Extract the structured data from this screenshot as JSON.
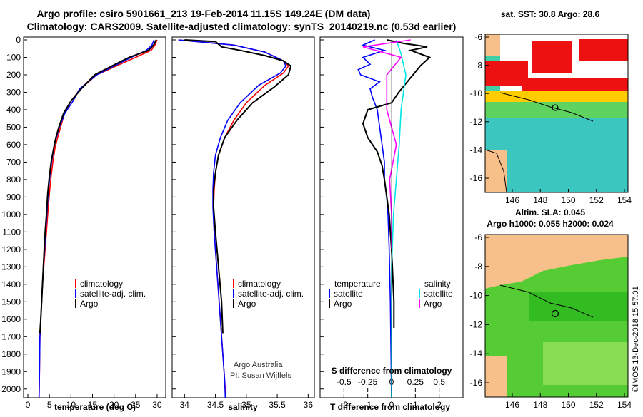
{
  "title": {
    "line1": "Argo profile: csiro 5901661_213 19-Feb-2014 11.15S 149.24E (DM data)",
    "line2": "Climatology: CARS2009. Satellite-adjusted climatology: synTS_20140219.nc (0.53d earlier)"
  },
  "colors": {
    "climatology": "#ff0000",
    "satellite": "#0000ff",
    "argo": "#000000",
    "salinity_sat": "#00e5e5",
    "salinity_argo": "#ff00ff",
    "land": "#f7c08a",
    "ocean_green": "#33cc33"
  },
  "depth_axis": {
    "ticks": [
      "0",
      "100",
      "200",
      "300",
      "400",
      "500",
      "600",
      "700",
      "800",
      "900",
      "1000",
      "1100",
      "1200",
      "1300",
      "1400",
      "1500",
      "1600",
      "1700",
      "1800",
      "1900",
      "2000"
    ],
    "range": [
      0,
      2050
    ]
  },
  "chart_data": [
    {
      "type": "line",
      "id": "temperature",
      "xlabel": "temperature (deg C)",
      "xticks": [
        "0",
        "5",
        "10",
        "15",
        "20",
        "25",
        "30"
      ],
      "xlim": [
        -1,
        32
      ],
      "legend": [
        "climatology",
        "satellite-adj. clim.",
        "Argo"
      ],
      "series": [
        {
          "name": "climatology",
          "color_key": "climatology",
          "x": [
            30.0,
            29.5,
            28.6,
            25.0,
            20.5,
            16.0,
            12.2,
            10.0,
            8.5,
            7.6,
            6.9,
            6.3,
            5.8,
            5.4,
            5.0,
            4.6,
            4.3,
            4.0,
            3.7,
            3.4,
            3.2,
            3.0,
            2.8,
            2.7,
            2.6
          ],
          "y": [
            0,
            30,
            60,
            100,
            150,
            200,
            280,
            350,
            420,
            500,
            560,
            620,
            700,
            780,
            880,
            1000,
            1100,
            1200,
            1300,
            1400,
            1500,
            1600,
            1700,
            1900,
            2050
          ]
        },
        {
          "name": "satellite-adj. clim.",
          "color_key": "satellite",
          "x": [
            29.3,
            28.8,
            27.5,
            24.0,
            20.0,
            16.0,
            12.0,
            10.5,
            8.6,
            7.3,
            6.6,
            6.0,
            5.5,
            5.1,
            4.7,
            4.4,
            4.1,
            3.9,
            3.6,
            3.4,
            3.2,
            3.0,
            2.8,
            2.7,
            2.6
          ],
          "y": [
            0,
            30,
            60,
            100,
            150,
            200,
            280,
            350,
            420,
            500,
            560,
            620,
            700,
            780,
            880,
            1000,
            1100,
            1200,
            1300,
            1400,
            1500,
            1600,
            1700,
            1900,
            2050
          ]
        },
        {
          "name": "Argo",
          "color_key": "argo",
          "x": [
            29.8,
            29.2,
            28.0,
            23.5,
            19.5,
            15.5,
            12.4,
            10.0,
            8.3,
            7.2,
            6.5,
            6.0,
            5.4,
            5.0,
            4.6,
            4.3,
            4.0,
            3.8,
            3.6,
            3.4,
            3.2,
            3.0,
            2.8
          ],
          "y": [
            0,
            30,
            60,
            100,
            150,
            200,
            280,
            350,
            420,
            500,
            560,
            620,
            700,
            780,
            880,
            1000,
            1100,
            1200,
            1300,
            1400,
            1500,
            1600,
            1680
          ]
        }
      ]
    },
    {
      "type": "line",
      "id": "salinity",
      "xlabel": "salinity",
      "xticks": [
        "34",
        "34.5",
        "35",
        "35.5",
        "36"
      ],
      "xlim": [
        33.8,
        36.1
      ],
      "legend": [
        "climatology",
        "satellite-adj. clim.",
        "Argo"
      ],
      "annotation": [
        "Argo Australia",
        "PI: Susan Wijffels"
      ],
      "series": [
        {
          "name": "climatology",
          "color_key": "climatology",
          "x": [
            33.9,
            34.2,
            34.8,
            35.3,
            35.6,
            35.68,
            35.6,
            35.3,
            35.0,
            34.8,
            34.65,
            34.55,
            34.5,
            34.48,
            34.47,
            34.48,
            34.52,
            34.56,
            34.6,
            34.63,
            34.65,
            34.67
          ],
          "y": [
            0,
            10,
            30,
            70,
            120,
            150,
            190,
            260,
            360,
            460,
            560,
            660,
            760,
            860,
            960,
            1100,
            1300,
            1500,
            1700,
            1850,
            1950,
            2050
          ]
        },
        {
          "name": "satellite-adj. clim.",
          "color_key": "satellite",
          "x": [
            33.9,
            34.2,
            34.8,
            35.3,
            35.6,
            35.64,
            35.55,
            35.2,
            34.9,
            34.7,
            34.58,
            34.5,
            34.47,
            34.46,
            34.46,
            34.48,
            34.52,
            34.56,
            34.6,
            34.63,
            34.65,
            34.66
          ],
          "y": [
            0,
            10,
            30,
            70,
            120,
            150,
            190,
            260,
            360,
            460,
            560,
            660,
            760,
            860,
            960,
            1100,
            1300,
            1500,
            1700,
            1850,
            1950,
            2050
          ]
        },
        {
          "name": "Argo",
          "color_key": "argo",
          "x": [
            34.0,
            34.5,
            34.6,
            34.9,
            35.3,
            35.6,
            35.72,
            35.68,
            35.45,
            35.1,
            34.85,
            34.65,
            34.55,
            34.5,
            34.47,
            34.47,
            34.5,
            34.55,
            34.6,
            34.62
          ],
          "y": [
            0,
            10,
            40,
            60,
            90,
            120,
            150,
            200,
            270,
            360,
            460,
            560,
            660,
            760,
            860,
            960,
            1100,
            1300,
            1500,
            1680
          ]
        }
      ]
    },
    {
      "type": "line",
      "id": "differences",
      "xlabel": "T difference from climatology",
      "xticks": [
        "-2",
        "-1",
        "0",
        "1",
        "2"
      ],
      "xlim": [
        -3,
        3
      ],
      "secondary_xlabel": "S difference from climatology",
      "secondary_xticks": [
        "-0.5",
        "-0.25",
        "0",
        "0.25",
        "0.5"
      ],
      "secondary_xlim": [
        -0.75,
        0.75
      ],
      "legend_temperature": {
        "title": "temperature",
        "items": [
          "satellite",
          "Argo"
        ]
      },
      "legend_salinity": {
        "title": "salinity",
        "items": [
          "satellite",
          "Argo"
        ]
      },
      "series": [
        {
          "name": "T satellite",
          "color_key": "satellite",
          "x": [
            -0.7,
            -1.2,
            -0.3,
            -1.2,
            -0.9,
            -1.4,
            -1.3,
            -0.5,
            -0.9,
            -0.8,
            -0.6,
            -0.5,
            -0.4,
            -0.3,
            -0.3,
            -0.2,
            -0.15,
            -0.1,
            -0.05,
            0.0
          ],
          "y": [
            0,
            30,
            60,
            100,
            140,
            170,
            200,
            240,
            280,
            330,
            400,
            500,
            600,
            700,
            800,
            900,
            1000,
            1200,
            1500,
            2050
          ]
        },
        {
          "name": "T Argo",
          "color_key": "argo",
          "x": [
            -0.2,
            0.5,
            1.5,
            0.8,
            1.6,
            1.2,
            0.9,
            0.6,
            0.3,
            0.0,
            -1.0,
            -1.2,
            -1.0,
            -0.6,
            -0.4,
            -0.3,
            -0.2,
            -0.1,
            0.0,
            0.1,
            0.1
          ],
          "y": [
            0,
            20,
            40,
            60,
            100,
            150,
            200,
            250,
            300,
            360,
            400,
            480,
            560,
            640,
            720,
            800,
            900,
            1000,
            1200,
            1500,
            1650
          ]
        },
        {
          "name": "S satellite",
          "color_key": "salinity_sat",
          "x": [
            0.05,
            0.1,
            0.15,
            0.1,
            0.08,
            0.05,
            0.02,
            0.0,
            0.0,
            0.0
          ],
          "y": [
            0,
            80,
            200,
            400,
            600,
            800,
            1000,
            1300,
            1700,
            2050
          ]
        },
        {
          "name": "S Argo",
          "color_key": "salinity_argo",
          "x": [
            0.2,
            -0.3,
            0.1,
            -0.05,
            -0.05,
            0.05,
            -0.02,
            0.0,
            0.0
          ],
          "y": [
            0,
            40,
            100,
            200,
            400,
            600,
            800,
            1000,
            1200
          ]
        }
      ]
    }
  ],
  "maps": {
    "lon_ticks": [
      "146",
      "148",
      "150",
      "152",
      "154"
    ],
    "lat_ticks": [
      "-6",
      "-8",
      "-10",
      "-12",
      "-14",
      "-16"
    ],
    "sst": {
      "title": "sat. SST: 30.8 Argo: 28.6"
    },
    "altim": {
      "title_line1": "Altim. SLA: 0.045",
      "title_line2": "Argo h1000: 0.055 h2000: 0.024"
    }
  },
  "footer": {
    "credit": "©IMOS 13-Dec-2018 15:57:01"
  }
}
